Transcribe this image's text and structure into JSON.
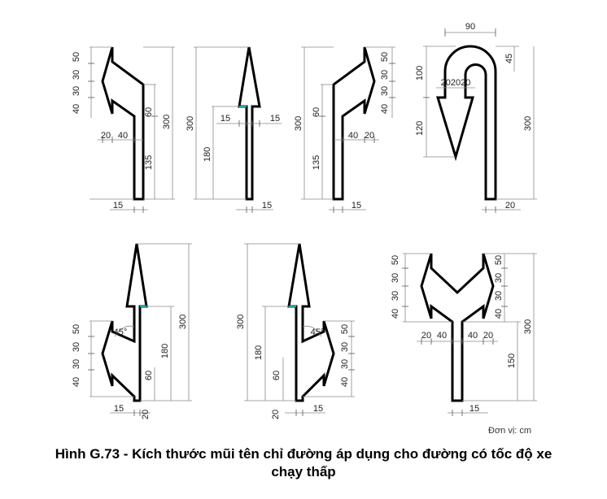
{
  "caption": {
    "line1": "Hình G.73 - Kích thước mũi tên chỉ đường áp dụng cho đường có tốc độ xe",
    "line2": "chạy thấp"
  },
  "unit_label": "Đơn vị: cm",
  "labels": {
    "d15": "15",
    "d20": "20",
    "d30": "30",
    "d40": "40",
    "d45": "45",
    "d50": "50",
    "d60": "60",
    "d90": "90",
    "d100": "100",
    "d120": "120",
    "d135": "135",
    "d150": "150",
    "d180": "180",
    "d300": "300",
    "d202020": "202020",
    "angle45": "45°"
  }
}
